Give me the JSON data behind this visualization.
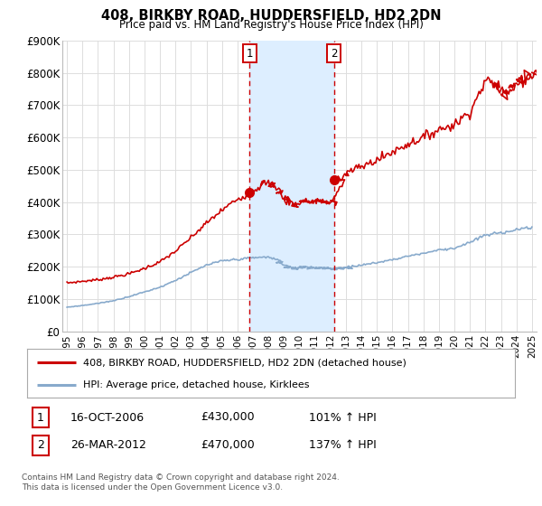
{
  "title": "408, BIRKBY ROAD, HUDDERSFIELD, HD2 2DN",
  "subtitle": "Price paid vs. HM Land Registry's House Price Index (HPI)",
  "legend_line1": "408, BIRKBY ROAD, HUDDERSFIELD, HD2 2DN (detached house)",
  "legend_line2": "HPI: Average price, detached house, Kirklees",
  "footnote1": "Contains HM Land Registry data © Crown copyright and database right 2024.",
  "footnote2": "This data is licensed under the Open Government Licence v3.0.",
  "purchase1_date": 2006.79,
  "purchase1_price": 430000,
  "purchase1_label": "1",
  "purchase1_date_str": "16-OCT-2006",
  "purchase1_price_str": "£430,000",
  "purchase1_hpi_str": "101% ↑ HPI",
  "purchase2_date": 2012.23,
  "purchase2_price": 470000,
  "purchase2_label": "2",
  "purchase2_date_str": "26-MAR-2012",
  "purchase2_price_str": "£470,000",
  "purchase2_hpi_str": "137% ↑ HPI",
  "red_color": "#cc0000",
  "blue_color": "#88aacc",
  "shade_color": "#ddeeff",
  "ylim": [
    0,
    900000
  ],
  "yticks": [
    0,
    100000,
    200000,
    300000,
    400000,
    500000,
    600000,
    700000,
    800000,
    900000
  ],
  "ytick_labels": [
    "£0",
    "£100K",
    "£200K",
    "£300K",
    "£400K",
    "£500K",
    "£600K",
    "£700K",
    "£800K",
    "£900K"
  ],
  "xlim_start": 1994.7,
  "xlim_end": 2025.3,
  "background_color": "#ffffff",
  "grid_color": "#dddddd"
}
